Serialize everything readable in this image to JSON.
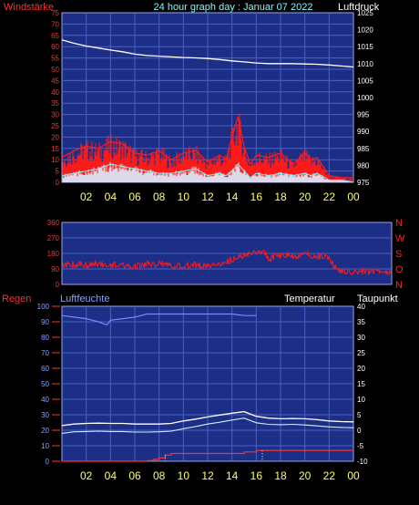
{
  "header": {
    "left_label": "Windstärke",
    "title": "24 hour graph day : Januar 07 2022",
    "right_label": "Luftdruck"
  },
  "colors": {
    "background": "#000000",
    "plot_bg": "#1c2e86",
    "grid": "#4a63c6",
    "wind_gust": "#ff1a1a",
    "wind_avg": "#d8f0ff",
    "pressure": "#ffffff",
    "direction": "#ff1a1a",
    "humidity": "#7f86ff",
    "temperature": "#ffffff",
    "dewpoint": "#cfeeff",
    "rain": "#ff3030",
    "x_tick_label": "#ffff66",
    "left_axis_label": "#ff3030",
    "right_axis_label": "#ffffff",
    "title_color": "#7ff5ff",
    "direction_label": "#ff2020"
  },
  "chart_data": [
    {
      "type": "line",
      "panel": "wind-pressure",
      "left_axis": {
        "title": "Windstärke",
        "ticks": [
          "0",
          "5",
          "10",
          "15",
          "20",
          "25",
          "30",
          "35",
          "40",
          "45",
          "50",
          "55",
          "60",
          "65",
          "70",
          "75"
        ],
        "ylim": [
          0,
          75
        ]
      },
      "right_axis": {
        "title": "Luftdruck",
        "ticks": [
          "975",
          "980",
          "985",
          "990",
          "995",
          "1000",
          "1005",
          "1010",
          "1015",
          "1020",
          "1025"
        ],
        "ylim": [
          975,
          1025
        ]
      },
      "x_ticks": [
        "02",
        "04",
        "06",
        "08",
        "10",
        "12",
        "14",
        "16",
        "18",
        "20",
        "22",
        "00"
      ],
      "xlim": [
        0,
        24
      ],
      "grid": true,
      "series": [
        {
          "key": "gust",
          "axis": "left",
          "x": [
            0,
            1,
            2,
            3,
            4,
            5,
            6,
            7,
            8,
            9,
            10,
            11,
            12,
            13,
            13.5,
            14,
            14.5,
            15,
            15.5,
            16,
            17,
            18,
            19,
            20,
            20.5,
            21,
            22,
            23,
            24
          ],
          "y": [
            11,
            14,
            16,
            15,
            18,
            17,
            13,
            12,
            14,
            10,
            13,
            14,
            9,
            12,
            10,
            20,
            29,
            16,
            8,
            12,
            11,
            13,
            8,
            13,
            10,
            11,
            3,
            2,
            2
          ]
        },
        {
          "key": "average",
          "axis": "left",
          "x": [
            0,
            1,
            2,
            3,
            4,
            5,
            6,
            7,
            8,
            9,
            10,
            11,
            12,
            13,
            13.5,
            14,
            14.5,
            15,
            15.5,
            16,
            17,
            18,
            19,
            20,
            20.5,
            21,
            22,
            23,
            24
          ],
          "y": [
            3,
            4,
            5,
            6,
            8,
            7,
            6,
            5,
            4,
            4,
            5,
            6,
            3,
            4,
            3,
            5,
            8,
            5,
            2,
            4,
            3,
            4,
            3,
            4,
            3,
            4,
            1,
            1,
            0
          ]
        },
        {
          "key": "pressure",
          "axis": "right",
          "x": [
            0,
            1,
            2,
            3,
            4,
            5,
            6,
            7,
            8,
            9,
            10,
            11,
            12,
            13,
            14,
            15,
            16,
            17,
            18,
            19,
            20,
            21,
            22,
            23,
            24
          ],
          "y": [
            1017,
            1016,
            1015.2,
            1014.6,
            1014,
            1013.5,
            1012.8,
            1012.4,
            1012.2,
            1012,
            1011.8,
            1011.7,
            1011.5,
            1011.2,
            1010.8,
            1010.5,
            1010.2,
            1010,
            1010,
            1010,
            1009.9,
            1009.8,
            1009.6,
            1009.3,
            1009
          ]
        }
      ]
    },
    {
      "type": "line",
      "panel": "wind-direction",
      "left_axis": {
        "ticks": [
          "0",
          "90",
          "180",
          "270",
          "360"
        ],
        "ylim": [
          0,
          360
        ]
      },
      "right_axis": {
        "ticks": [
          "N",
          "W",
          "S",
          "O",
          "N"
        ]
      },
      "xlim": [
        0,
        24
      ],
      "grid": true,
      "series": [
        {
          "key": "direction",
          "x": [
            0,
            1,
            2,
            3,
            4,
            5,
            6,
            7,
            8,
            9,
            10,
            11,
            12,
            13,
            14,
            15,
            16,
            16.5,
            17,
            18,
            19,
            20,
            21,
            22,
            22.5,
            23,
            24
          ],
          "y": [
            110,
            115,
            112,
            118,
            110,
            112,
            108,
            115,
            120,
            105,
            110,
            112,
            108,
            120,
            145,
            170,
            190,
            200,
            150,
            170,
            168,
            172,
            165,
            150,
            95,
            80,
            75
          ]
        }
      ]
    },
    {
      "type": "line",
      "panel": "humidity-temperature",
      "left_axis": {
        "title": "Regen",
        "ticks": [
          "0",
          "10",
          "20",
          "30",
          "40",
          "50",
          "60",
          "70",
          "80",
          "90",
          "100"
        ],
        "ylim": [
          0,
          100
        ]
      },
      "right_axis": {
        "title": "Taupunkt",
        "ticks": [
          "-10",
          "-5",
          "0",
          "5",
          "10",
          "15",
          "20",
          "25",
          "30",
          "35",
          "40"
        ],
        "ylim": [
          -10,
          40
        ]
      },
      "labels": {
        "humidity": "Luftfeuchte",
        "temperature": "Temperatur"
      },
      "x_ticks": [
        "02",
        "04",
        "06",
        "08",
        "10",
        "12",
        "14",
        "16",
        "18",
        "20",
        "22",
        "00"
      ],
      "xlim": [
        0,
        24
      ],
      "grid": true,
      "series": [
        {
          "key": "humidity",
          "axis": "left",
          "x": [
            0,
            1,
            2,
            3,
            3.7,
            4,
            5,
            6,
            7,
            8,
            9,
            10,
            11,
            12,
            13,
            14,
            15,
            16,
            17,
            18,
            19,
            20,
            21,
            22,
            23,
            24
          ],
          "y": [
            94,
            93,
            92,
            90,
            88,
            91,
            92,
            93,
            95,
            95,
            95,
            95,
            95,
            95,
            95,
            95,
            94,
            94,
            null,
            null,
            null,
            null,
            null,
            null,
            null,
            null
          ]
        },
        {
          "key": "temperature",
          "axis": "right",
          "x": [
            0,
            1,
            2,
            3,
            4,
            5,
            6,
            7,
            8,
            9,
            10,
            11,
            12,
            13,
            14,
            15,
            16,
            17,
            18,
            19,
            20,
            21,
            22,
            23,
            24
          ],
          "y": [
            1.5,
            2,
            2.2,
            2.3,
            2.2,
            2.2,
            2,
            2,
            2,
            2.2,
            3,
            3.6,
            4.3,
            4.9,
            5.5,
            6,
            4.5,
            3.9,
            3.7,
            3.8,
            3.7,
            3.4,
            3,
            2.8,
            2.7
          ]
        },
        {
          "key": "dewpoint",
          "axis": "right",
          "x": [
            0,
            1,
            2,
            3,
            4,
            5,
            6,
            7,
            8,
            9,
            10,
            11,
            12,
            13,
            14,
            15,
            16,
            17,
            18,
            19,
            20,
            21,
            22,
            23,
            24
          ],
          "y": [
            -1,
            -0.5,
            -0.4,
            -0.3,
            -0.4,
            -0.4,
            -0.6,
            -0.6,
            -0.5,
            -0.3,
            0.5,
            1.2,
            2,
            2.6,
            3.3,
            3.9,
            2.4,
            1.9,
            1.8,
            1.9,
            1.7,
            1.4,
            1.1,
            0.9,
            0.8
          ]
        },
        {
          "key": "rain",
          "axis": "left",
          "x": [
            0,
            6,
            7,
            7.5,
            8,
            8.5,
            9,
            12,
            14,
            15,
            16,
            17,
            20,
            23,
            24
          ],
          "y": [
            0,
            0,
            0.4,
            1.2,
            2.2,
            4,
            5,
            5,
            5,
            6,
            7,
            7,
            7,
            7,
            7
          ]
        }
      ]
    }
  ]
}
